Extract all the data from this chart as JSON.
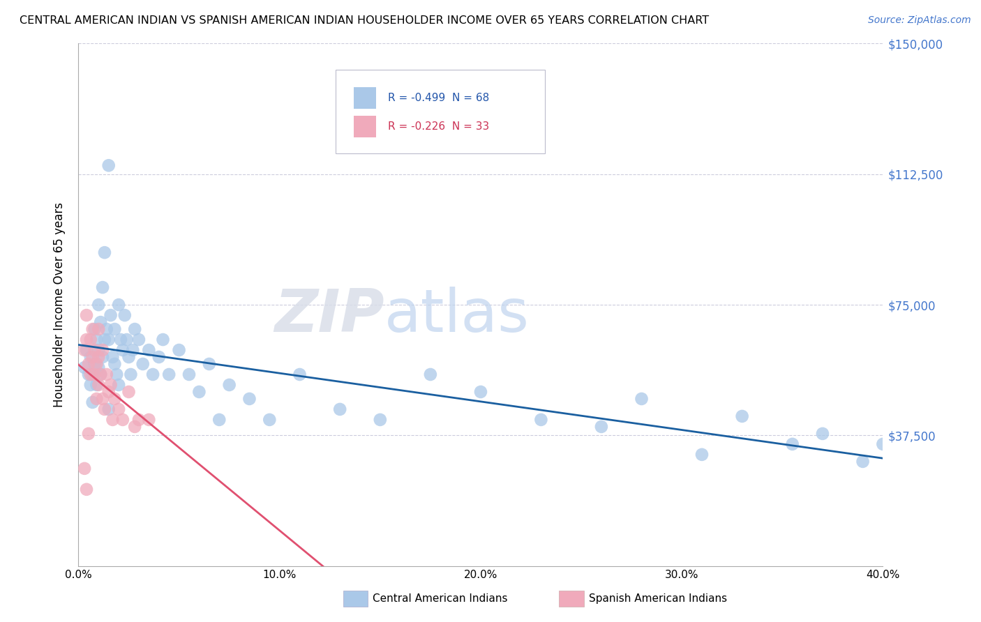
{
  "title": "CENTRAL AMERICAN INDIAN VS SPANISH AMERICAN INDIAN HOUSEHOLDER INCOME OVER 65 YEARS CORRELATION CHART",
  "source": "Source: ZipAtlas.com",
  "ylabel": "Householder Income Over 65 years",
  "xlim": [
    0.0,
    0.4
  ],
  "ylim": [
    0,
    150000
  ],
  "yticks": [
    0,
    37500,
    75000,
    112500,
    150000
  ],
  "ytick_labels": [
    "",
    "$37,500",
    "$75,000",
    "$112,500",
    "$150,000"
  ],
  "xticks": [
    0.0,
    0.1,
    0.2,
    0.3,
    0.4
  ],
  "xtick_labels": [
    "0.0%",
    "10.0%",
    "20.0%",
    "30.0%",
    "40.0%"
  ],
  "blue_R": -0.499,
  "blue_N": 68,
  "pink_R": -0.226,
  "pink_N": 33,
  "blue_color": "#aac8e8",
  "pink_color": "#f0aabb",
  "blue_line_color": "#1a5fa0",
  "pink_line_color": "#e05070",
  "pink_line_dash_color": "#e090a0",
  "legend1_label": "Central American Indians",
  "legend2_label": "Spanish American Indians",
  "blue_scatter_x": [
    0.003,
    0.004,
    0.005,
    0.006,
    0.006,
    0.007,
    0.007,
    0.008,
    0.008,
    0.009,
    0.009,
    0.01,
    0.01,
    0.01,
    0.011,
    0.011,
    0.012,
    0.012,
    0.013,
    0.013,
    0.014,
    0.015,
    0.015,
    0.016,
    0.017,
    0.018,
    0.018,
    0.019,
    0.02,
    0.021,
    0.022,
    0.023,
    0.024,
    0.025,
    0.026,
    0.027,
    0.028,
    0.03,
    0.032,
    0.035,
    0.037,
    0.04,
    0.042,
    0.045,
    0.05,
    0.055,
    0.06,
    0.065,
    0.07,
    0.075,
    0.085,
    0.095,
    0.11,
    0.13,
    0.15,
    0.175,
    0.2,
    0.23,
    0.26,
    0.28,
    0.31,
    0.33,
    0.355,
    0.37,
    0.39,
    0.4,
    0.015,
    0.02
  ],
  "blue_scatter_y": [
    57000,
    62000,
    55000,
    52000,
    60000,
    47000,
    55000,
    68000,
    58000,
    65000,
    52000,
    75000,
    62000,
    57000,
    70000,
    55000,
    80000,
    60000,
    90000,
    65000,
    68000,
    115000,
    65000,
    72000,
    60000,
    68000,
    58000,
    55000,
    75000,
    65000,
    62000,
    72000,
    65000,
    60000,
    55000,
    62000,
    68000,
    65000,
    58000,
    62000,
    55000,
    60000,
    65000,
    55000,
    62000,
    55000,
    50000,
    58000,
    42000,
    52000,
    48000,
    42000,
    55000,
    45000,
    42000,
    55000,
    50000,
    42000,
    40000,
    48000,
    32000,
    43000,
    35000,
    38000,
    30000,
    35000,
    45000,
    52000
  ],
  "pink_scatter_x": [
    0.003,
    0.004,
    0.004,
    0.005,
    0.005,
    0.006,
    0.006,
    0.007,
    0.007,
    0.008,
    0.008,
    0.009,
    0.009,
    0.01,
    0.01,
    0.01,
    0.011,
    0.012,
    0.012,
    0.013,
    0.014,
    0.015,
    0.016,
    0.017,
    0.018,
    0.02,
    0.022,
    0.025,
    0.028,
    0.03,
    0.035,
    0.004,
    0.003
  ],
  "pink_scatter_y": [
    62000,
    72000,
    65000,
    58000,
    38000,
    65000,
    55000,
    68000,
    60000,
    62000,
    55000,
    58000,
    48000,
    68000,
    60000,
    52000,
    55000,
    62000,
    48000,
    45000,
    55000,
    50000,
    52000,
    42000,
    48000,
    45000,
    42000,
    50000,
    40000,
    42000,
    42000,
    22000,
    28000
  ]
}
